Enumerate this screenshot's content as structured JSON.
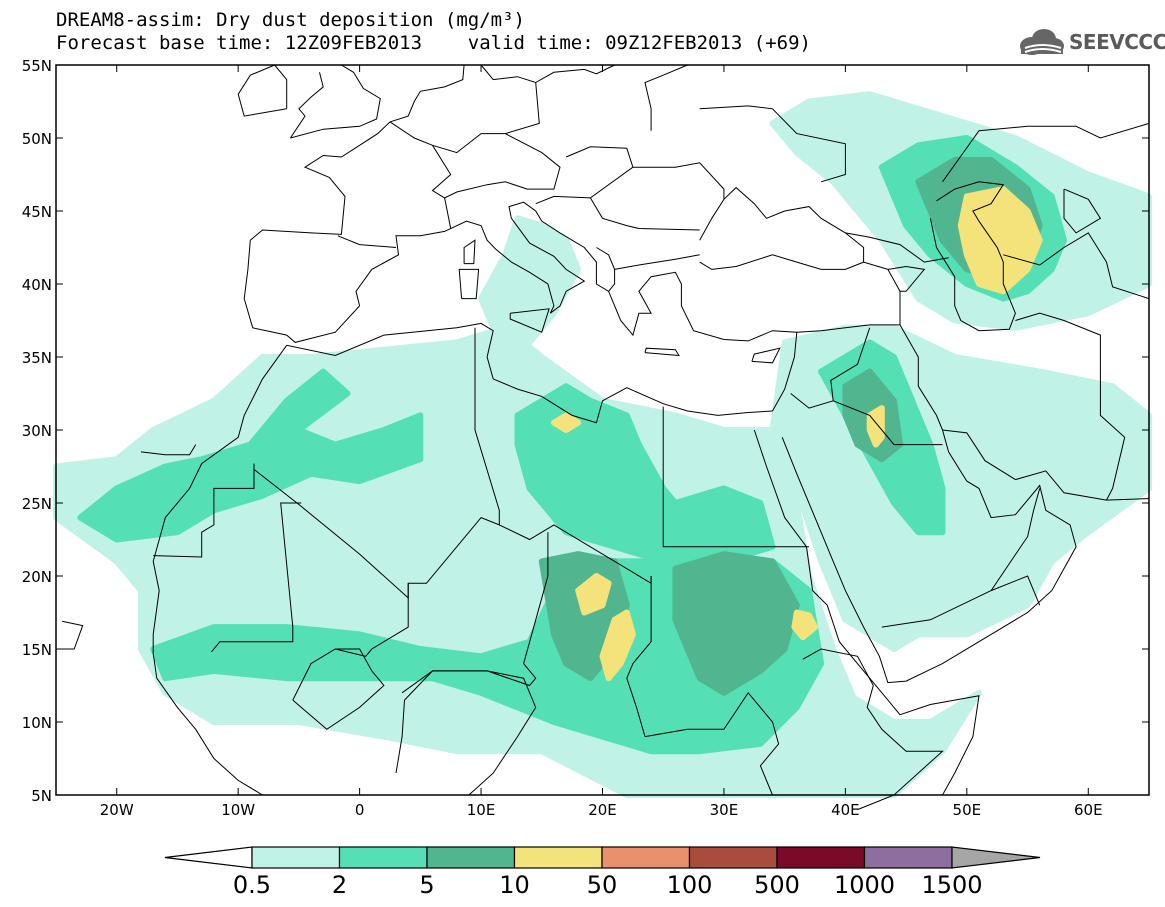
{
  "header": {
    "title_line1": "DREAM8-assim: Dry dust deposition (mg/m³)",
    "title_line2": "Forecast base time: 12Z09FEB2013    valid time: 09Z12FEB2013 (+69)",
    "logo_text": "SEEVCCC"
  },
  "map": {
    "lon_range": [
      -25,
      65
    ],
    "lat_range": [
      5,
      55
    ],
    "lat_ticks": [
      {
        "value": 55,
        "label": "55N"
      },
      {
        "value": 50,
        "label": "50N"
      },
      {
        "value": 45,
        "label": "45N"
      },
      {
        "value": 40,
        "label": "40N"
      },
      {
        "value": 35,
        "label": "35N"
      },
      {
        "value": 30,
        "label": "30N"
      },
      {
        "value": 25,
        "label": "25N"
      },
      {
        "value": 20,
        "label": "20N"
      },
      {
        "value": 15,
        "label": "15N"
      },
      {
        "value": 10,
        "label": "10N"
      },
      {
        "value": 5,
        "label": "5N"
      }
    ],
    "lon_ticks": [
      {
        "value": -20,
        "label": "20W"
      },
      {
        "value": -10,
        "label": "10W"
      },
      {
        "value": 0,
        "label": "0"
      },
      {
        "value": 10,
        "label": "10E"
      },
      {
        "value": 20,
        "label": "20E"
      },
      {
        "value": 30,
        "label": "30E"
      },
      {
        "value": 40,
        "label": "40E"
      },
      {
        "value": 50,
        "label": "50E"
      },
      {
        "value": 60,
        "label": "60E"
      }
    ]
  },
  "colorbar": {
    "levels": [
      "0.5",
      "2",
      "5",
      "10",
      "50",
      "100",
      "500",
      "1000",
      "1500"
    ],
    "colors": [
      "#c1f2e8",
      "#54e0b4",
      "#51b690",
      "#f3e37a",
      "#e8916c",
      "#a94c3d",
      "#7a0a28",
      "#8e6e9e"
    ],
    "low_extension_color": "#ffffff",
    "high_extension_color": "#a6a6a6"
  },
  "shading": {
    "colors": {
      "c1": "#c1f2e8",
      "c2": "#54e0b4",
      "c3": "#51b690",
      "c4": "#f3e37a"
    }
  }
}
